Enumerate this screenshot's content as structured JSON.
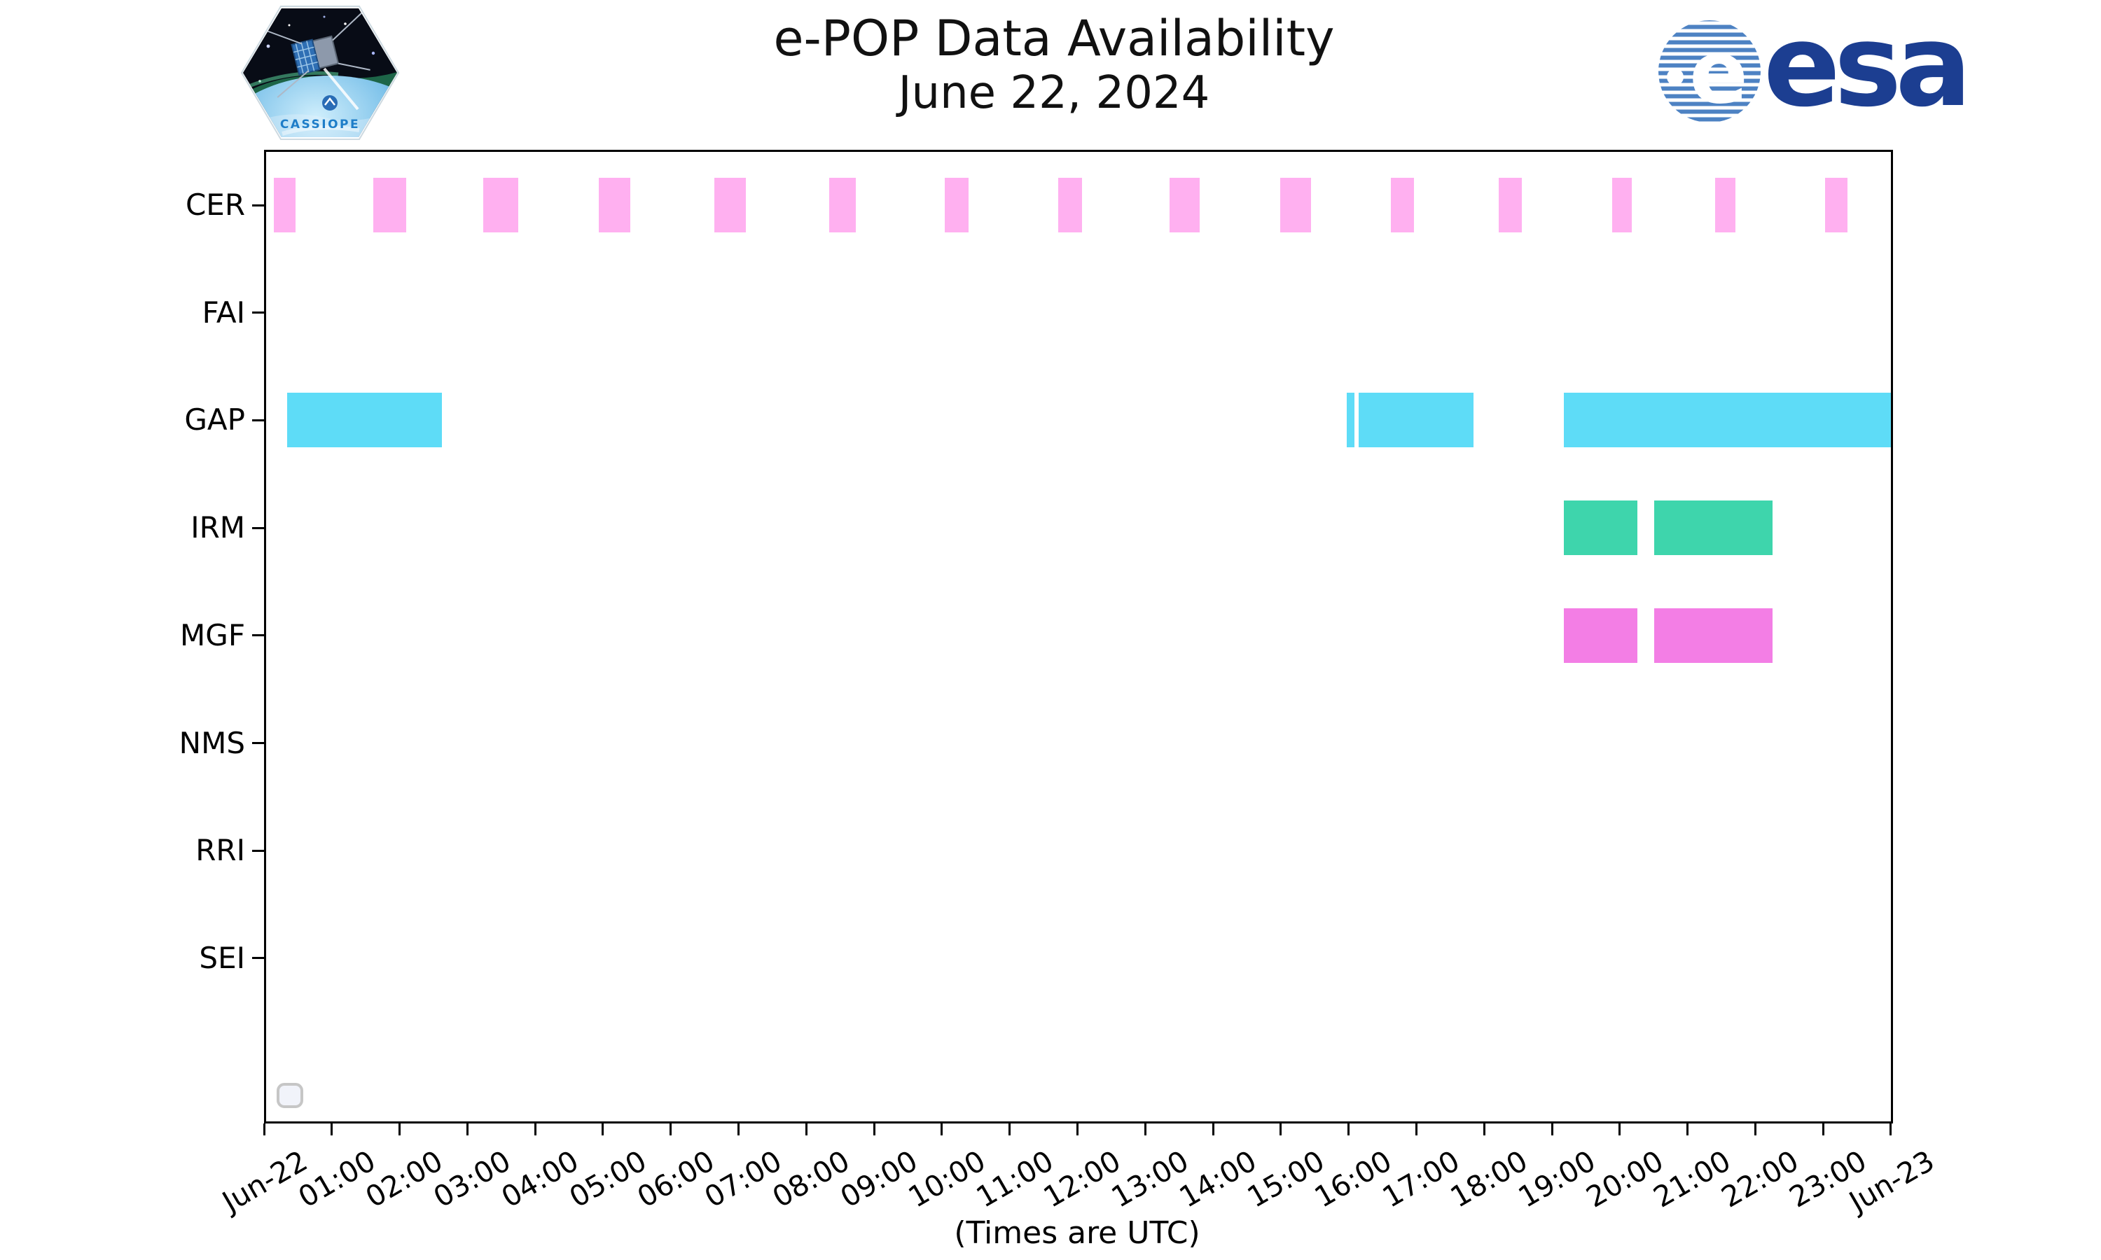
{
  "header": {
    "title_line1": "e-POP Data Availability",
    "title_line2": "June 22, 2024"
  },
  "branding": {
    "cassiope_patch_label": "CASSIOPE",
    "esa_wordmark": "esa"
  },
  "chart_data": {
    "type": "timeline",
    "title": "e-POP Data Availability",
    "subtitle": "June 22, 2024",
    "xlabel": "(Times are UTC)",
    "x_axis": {
      "start": "Jun-22 00:00 UTC",
      "end": "Jun-23 00:00 UTC",
      "range_hours": [
        0,
        24
      ],
      "tick_hours": [
        0,
        1,
        2,
        3,
        4,
        5,
        6,
        7,
        8,
        9,
        10,
        11,
        12,
        13,
        14,
        15,
        16,
        17,
        18,
        19,
        20,
        21,
        22,
        23,
        24
      ],
      "tick_labels": [
        "Jun-22",
        "01:00",
        "02:00",
        "03:00",
        "04:00",
        "05:00",
        "06:00",
        "07:00",
        "08:00",
        "09:00",
        "10:00",
        "11:00",
        "12:00",
        "13:00",
        "14:00",
        "15:00",
        "16:00",
        "17:00",
        "18:00",
        "19:00",
        "20:00",
        "21:00",
        "22:00",
        "23:00",
        "Jun-23"
      ],
      "grid": false
    },
    "rows": [
      {
        "label": "CER",
        "color": "#ffb0f0",
        "segments_hours": [
          [
            0.14,
            0.46
          ],
          [
            1.61,
            2.1
          ],
          [
            3.23,
            3.75
          ],
          [
            4.94,
            5.4
          ],
          [
            6.64,
            7.11
          ],
          [
            8.34,
            8.73
          ],
          [
            10.04,
            10.39
          ],
          [
            11.72,
            12.07
          ],
          [
            13.36,
            13.8
          ],
          [
            14.99,
            15.45
          ],
          [
            16.62,
            16.96
          ],
          [
            18.21,
            18.56
          ],
          [
            19.89,
            20.18
          ],
          [
            21.41,
            21.71
          ],
          [
            23.03,
            23.36
          ]
        ]
      },
      {
        "label": "FAI",
        "color": null,
        "segments_hours": []
      },
      {
        "label": "GAP",
        "color": "#5edcf7",
        "segments_hours": [
          [
            0.34,
            2.62
          ],
          [
            15.97,
            16.09
          ],
          [
            16.15,
            17.84
          ],
          [
            19.18,
            24.0
          ]
        ]
      },
      {
        "label": "IRM",
        "color": "#3ed5ac",
        "segments_hours": [
          [
            19.18,
            20.26
          ],
          [
            20.51,
            22.25
          ]
        ]
      },
      {
        "label": "MGF",
        "color": "#f37ee5",
        "segments_hours": [
          [
            19.18,
            20.26
          ],
          [
            20.51,
            22.25
          ]
        ]
      },
      {
        "label": "NMS",
        "color": null,
        "segments_hours": []
      },
      {
        "label": "RRI",
        "color": null,
        "segments_hours": []
      },
      {
        "label": "SEI",
        "color": null,
        "segments_hours": []
      }
    ],
    "legend": {
      "visible": true,
      "entries": []
    }
  }
}
